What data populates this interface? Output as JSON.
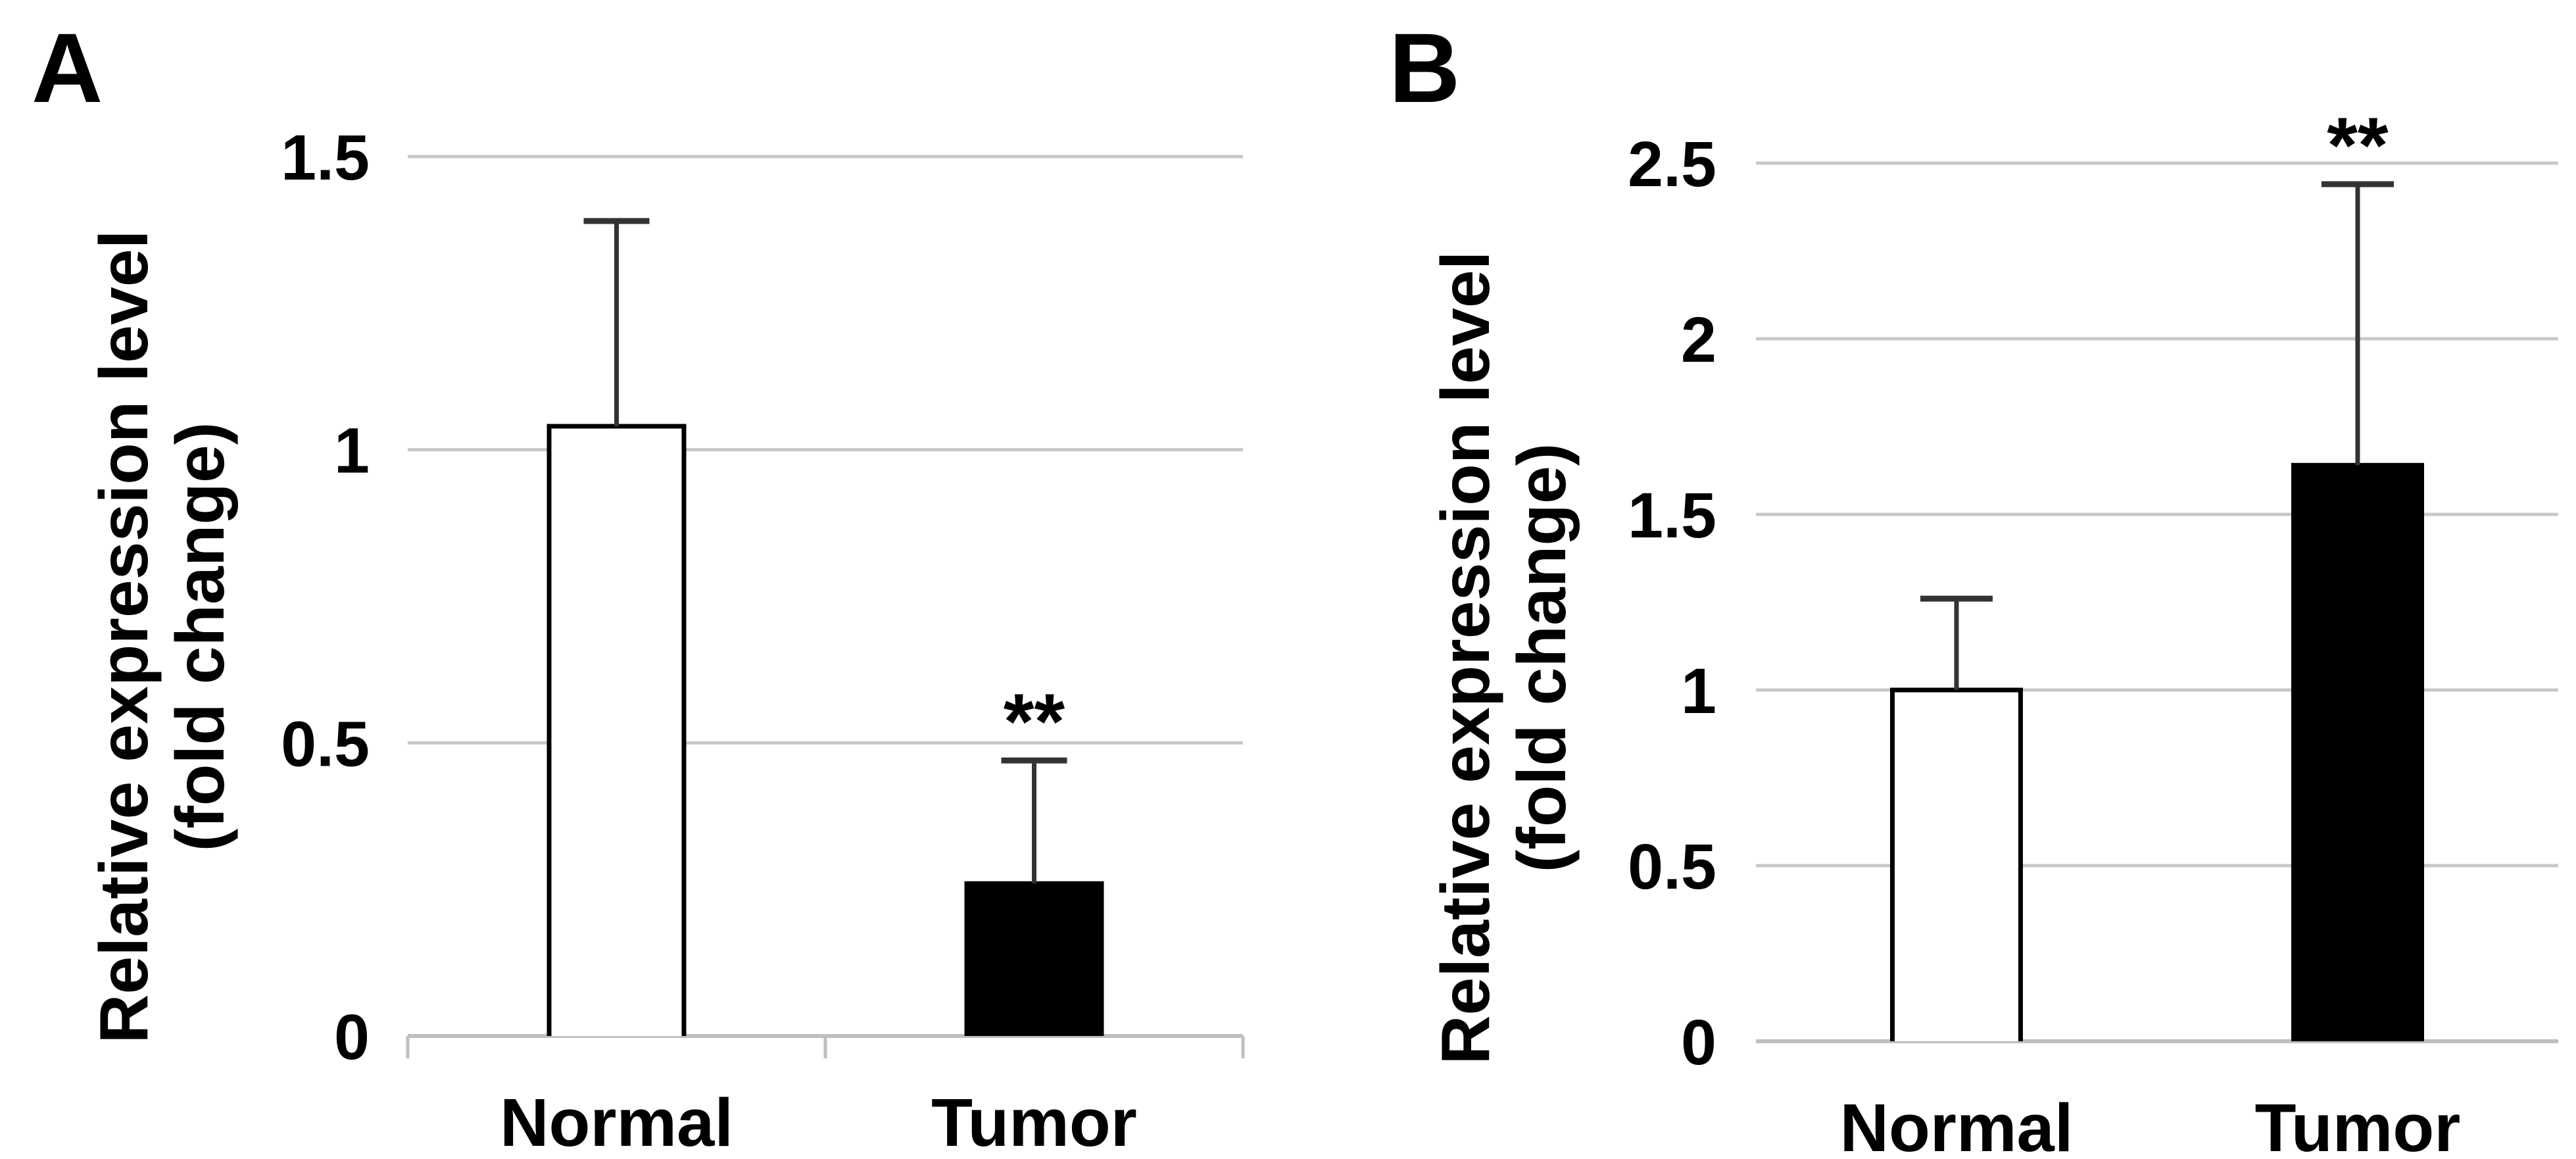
{
  "figure": {
    "description": "Two-panel bar figure comparing relative expression levels in Normal vs Tumor samples",
    "colors": {
      "background": "#ffffff",
      "text": "#000000",
      "gridline": "#c8c8c8",
      "axis_line": "#bfbfbf",
      "bar_border": "#000000",
      "error_bar": "#333333",
      "normal_bar_fill": "#ffffff",
      "tumor_bar_fill": "#000000"
    }
  },
  "chart_data": [
    {
      "type": "bar",
      "panel_label": "A",
      "categories": [
        "Normal",
        "Tumor"
      ],
      "values": [
        1.04,
        0.26
      ],
      "error_plus": [
        0.35,
        0.21
      ],
      "significance": [
        "",
        "**"
      ],
      "bar_fills": [
        "#ffffff",
        "#000000"
      ],
      "title": "",
      "xlabel": "",
      "ylabel_line1": "Relative expression level",
      "ylabel_line2": "(fold change)",
      "ylim": [
        0,
        1.5
      ],
      "ytick_labels": [
        "0",
        "0.5",
        "1",
        "1.5"
      ],
      "grid": true,
      "axis_tick_marks": true,
      "legend": "none"
    },
    {
      "type": "bar",
      "panel_label": "B",
      "categories": [
        "Normal",
        "Tumor"
      ],
      "values": [
        1.0,
        1.64
      ],
      "error_plus": [
        0.26,
        0.8
      ],
      "significance": [
        "",
        "**"
      ],
      "bar_fills": [
        "#ffffff",
        "#000000"
      ],
      "title": "",
      "xlabel": "",
      "ylabel_line1": "Relative expression level",
      "ylabel_line2": "(fold change)",
      "ylim": [
        0,
        2.5
      ],
      "ytick_labels": [
        "0",
        "0.5",
        "1",
        "1.5",
        "2",
        "2.5"
      ],
      "grid": true,
      "axis_tick_marks": false,
      "legend": "none"
    }
  ]
}
